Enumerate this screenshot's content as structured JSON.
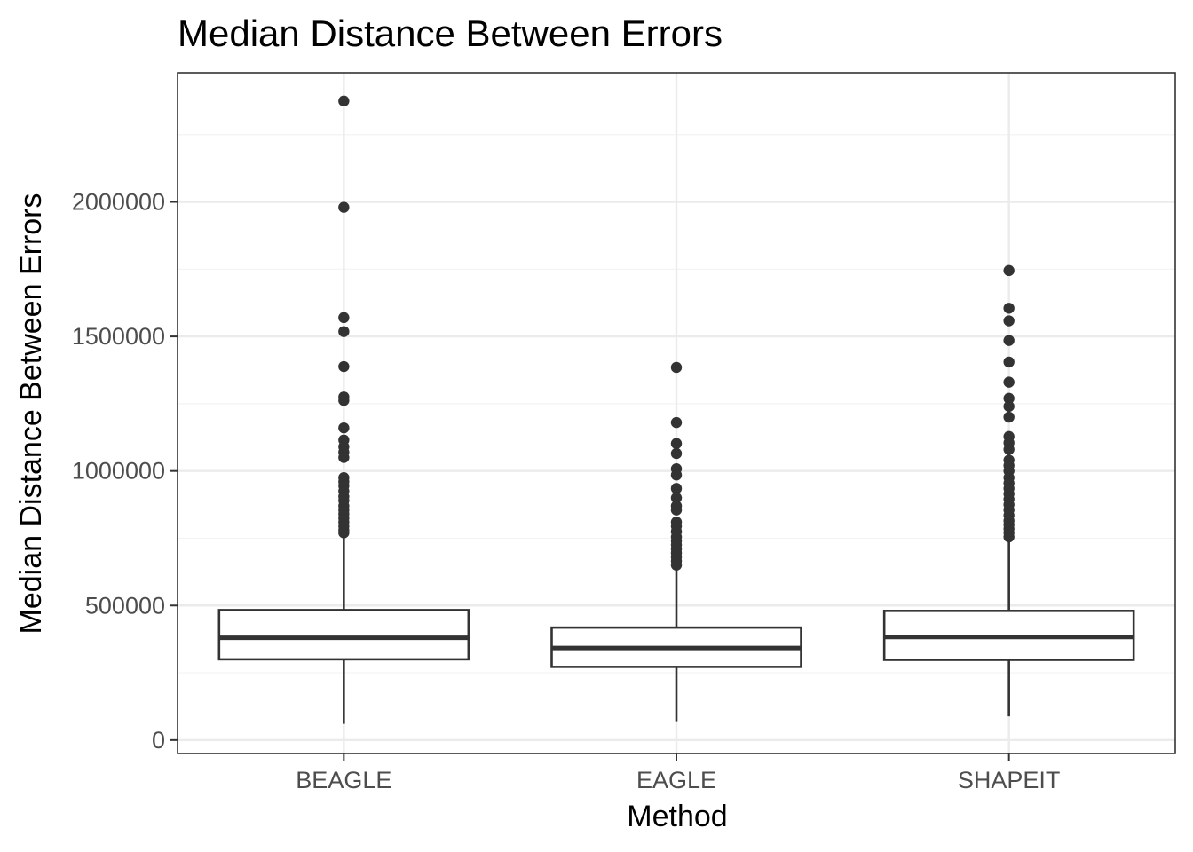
{
  "chart_data": {
    "type": "boxplot",
    "title": "Median Distance Between Errors",
    "xlabel": "Method",
    "ylabel": "Median Distance Between Errors",
    "categories": [
      "BEAGLE",
      "EAGLE",
      "SHAPEIT"
    ],
    "ylim": [
      -50000,
      2480000
    ],
    "yticks": [
      0,
      500000,
      1000000,
      1500000,
      2000000
    ],
    "ytick_labels": [
      "0",
      "500000",
      "1000000",
      "1500000",
      "2000000"
    ],
    "grid": true,
    "colors": {
      "box_stroke": "#333333",
      "point": "#333333",
      "grid_major": "#ebebeb",
      "grid_minor": "#f3f3f3",
      "panel_border": "#333333"
    },
    "boxes": [
      {
        "category": "BEAGLE",
        "lower_whisker": 60000,
        "q1": 300000,
        "median": 380000,
        "q3": 483000,
        "upper_whisker": 760000,
        "outliers": [
          2375000,
          1980000,
          1570000,
          1518000,
          1388000,
          1275000,
          1262000,
          1160000,
          1115000,
          1090000,
          1070000,
          1050000,
          975000,
          960000,
          945000,
          925000,
          905000,
          890000,
          870000,
          855000,
          840000,
          825000,
          810000,
          795000,
          780000,
          770000
        ]
      },
      {
        "category": "EAGLE",
        "lower_whisker": 70000,
        "q1": 272000,
        "median": 342000,
        "q3": 418000,
        "upper_whisker": 640000,
        "outliers": [
          1385000,
          1180000,
          1102000,
          1065000,
          1008000,
          985000,
          935000,
          900000,
          870000,
          855000,
          810000,
          795000,
          775000,
          755000,
          740000,
          725000,
          710000,
          695000,
          680000,
          665000,
          650000
        ]
      },
      {
        "category": "SHAPEIT",
        "lower_whisker": 88000,
        "q1": 298000,
        "median": 383000,
        "q3": 480000,
        "upper_whisker": 748000,
        "outliers": [
          1745000,
          1605000,
          1558000,
          1485000,
          1405000,
          1330000,
          1270000,
          1240000,
          1200000,
          1128000,
          1105000,
          1080000,
          1040000,
          1020000,
          1000000,
          975000,
          955000,
          935000,
          915000,
          895000,
          875000,
          855000,
          835000,
          815000,
          800000,
          785000,
          770000,
          755000
        ]
      }
    ]
  }
}
